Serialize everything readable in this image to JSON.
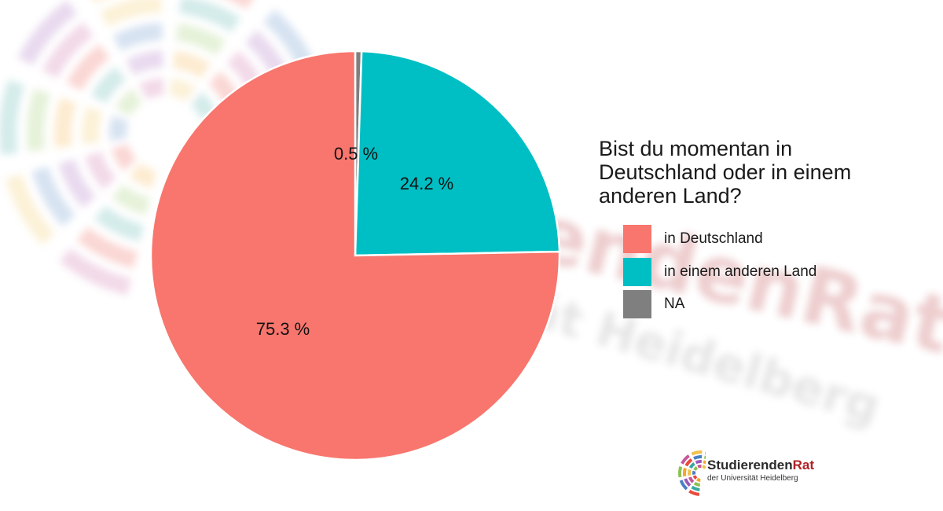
{
  "chart_data": {
    "type": "pie",
    "legend_title": "Bist du momentan in Deutschland oder in einem anderen Land?",
    "legend_position": "right",
    "slices": [
      {
        "name": "in Deutschland",
        "value": 75.3,
        "label": "75.3 %",
        "color": "#F8766D"
      },
      {
        "name": "in einem anderen Land",
        "value": 24.2,
        "label": "24.2 %",
        "color": "#00BFC4"
      },
      {
        "name": "NA",
        "value": 0.5,
        "label": "0.5 %",
        "color": "#7F7F7F"
      }
    ]
  },
  "branding": {
    "logo_name_main": "Studierenden",
    "logo_name_accent": "Rat",
    "logo_subtitle": "der Universität Heidelberg",
    "watermark_line1": "Studierenden",
    "watermark_accent": "Rat",
    "watermark_line2": "der Universität Heidelberg",
    "accent_color": "#b01f24"
  }
}
